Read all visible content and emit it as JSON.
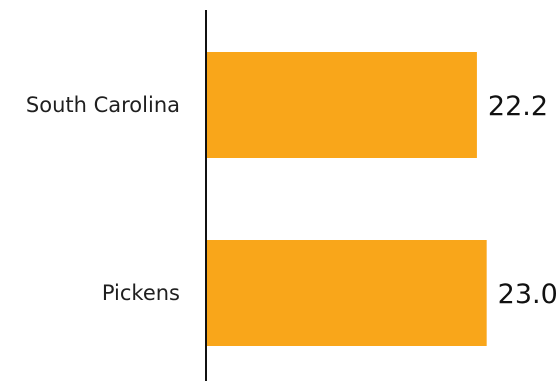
{
  "chart_data": {
    "type": "bar",
    "orientation": "horizontal",
    "categories": [
      "South Carolina",
      "Pickens"
    ],
    "values": [
      22.2,
      23.0
    ],
    "value_labels": [
      "22.2",
      "23.0"
    ],
    "title": "",
    "xlabel": "",
    "ylabel": "",
    "xlim": [
      0,
      23.6
    ],
    "grid": false,
    "bar_color": "#F9A61A"
  }
}
